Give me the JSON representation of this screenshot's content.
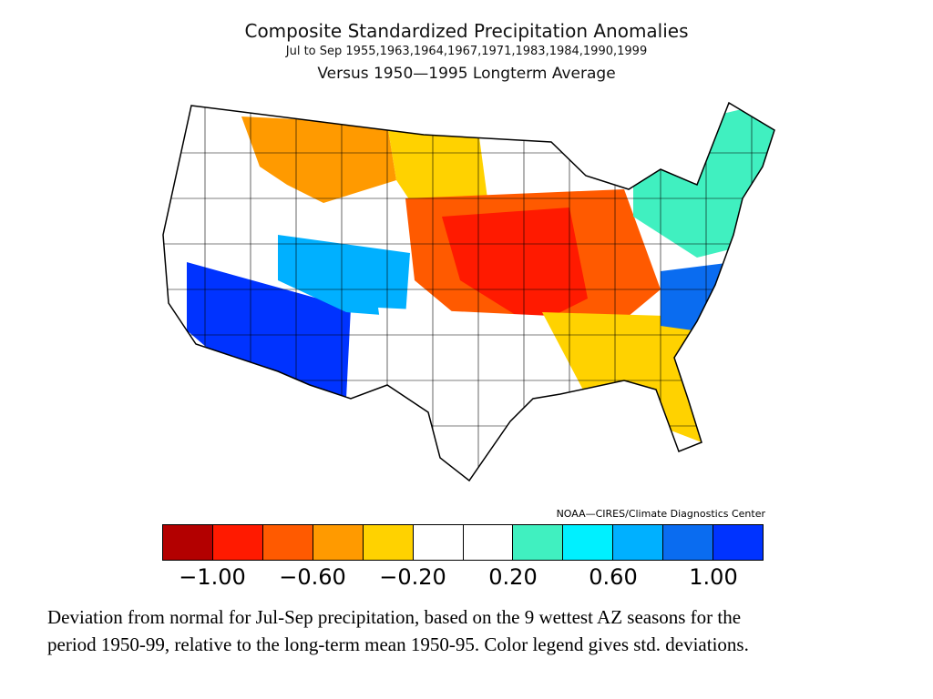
{
  "title": {
    "line1": "Composite Standardized Precipitation Anomalies",
    "line2": "Jul to Sep   1955,1963,1964,1967,1971,1983,1984,1990,1999",
    "line3": "Versus 1950—1995 Longterm Average"
  },
  "credit": "NOAA—CIRES/Climate Diagnostics Center",
  "legend": {
    "colors": [
      "#b30000",
      "#ff1a00",
      "#ff5a00",
      "#ff9a00",
      "#ffd200",
      "#ffffff",
      "#ffffff",
      "#40f0c0",
      "#00f0ff",
      "#00b0ff",
      "#0a6cf0",
      "#0033ff"
    ],
    "tick_labels": [
      "−1.00",
      "−0.60",
      "−0.20",
      "0.20",
      "0.60",
      "1.00"
    ]
  },
  "map": {
    "region": "contiguous-united-states",
    "units": "standard-deviations",
    "regions": [
      {
        "area": "pacific-northwest",
        "color": "#ffffff"
      },
      {
        "area": "northern-rockies",
        "color": "#ff9a00"
      },
      {
        "area": "northern-plains",
        "color": "#ffd200"
      },
      {
        "area": "central-plains-midwest",
        "color": "#ff5a00"
      },
      {
        "area": "core-midwest",
        "color": "#ff1a00"
      },
      {
        "area": "southwest",
        "color": "#0033ff"
      },
      {
        "area": "great-basin",
        "color": "#00b0ff"
      },
      {
        "area": "texas",
        "color": "#ffffff"
      },
      {
        "area": "southeast",
        "color": "#ffd200"
      },
      {
        "area": "carolinas",
        "color": "#0a6cf0"
      },
      {
        "area": "northeast",
        "color": "#40f0c0"
      }
    ]
  },
  "caption": {
    "line1": "Deviation from normal for Jul-Sep precipitation, based on the 9 wettest AZ seasons for the",
    "line2": "period 1950-99, relative to the long-term mean 1950-95.  Color legend gives std. deviations."
  }
}
